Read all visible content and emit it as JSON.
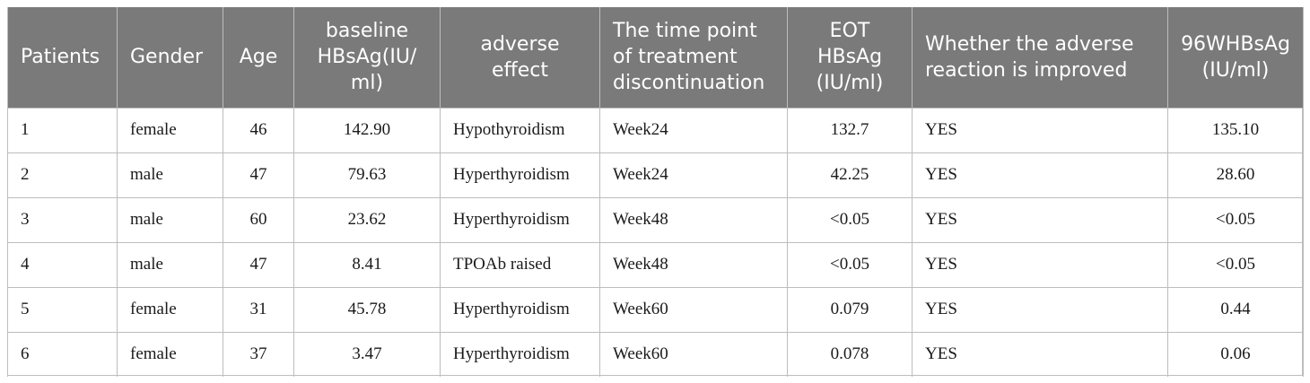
{
  "table": {
    "headers": [
      "Patients",
      "Gender",
      "Age",
      "baseline HBsAg(IU/ ml)",
      "adverse effect",
      "The time point of treatment discontinuation",
      "EOT HBsAg (IU/ml)",
      "Whether the adverse reaction is improved",
      "96WHBsAg (IU/ml)"
    ],
    "rows": [
      [
        "1",
        "female",
        "46",
        "142.90",
        "Hypothyroidism",
        "Week24",
        "132.7",
        "YES",
        "135.10"
      ],
      [
        "2",
        "male",
        "47",
        "79.63",
        "Hyperthyroidism",
        "Week24",
        "42.25",
        "YES",
        "28.60"
      ],
      [
        "3",
        "male",
        "60",
        "23.62",
        "Hyperthyroidism",
        "Week48",
        "<0.05",
        "YES",
        "<0.05"
      ],
      [
        "4",
        "male",
        "47",
        "8.41",
        "TPOAb raised",
        "Week48",
        "<0.05",
        "YES",
        "<0.05"
      ],
      [
        "5",
        "female",
        "31",
        "45.78",
        "Hyperthyroidism",
        "Week60",
        "0.079",
        "YES",
        "0.44"
      ],
      [
        "6",
        "female",
        "37",
        "3.47",
        "Hyperthyroidism",
        "Week60",
        "0.078",
        "YES",
        "0.06"
      ]
    ]
  },
  "colors": {
    "header_bg": "#7a7a7a",
    "header_text": "#ffffff",
    "grid": "#bdbdbd"
  }
}
